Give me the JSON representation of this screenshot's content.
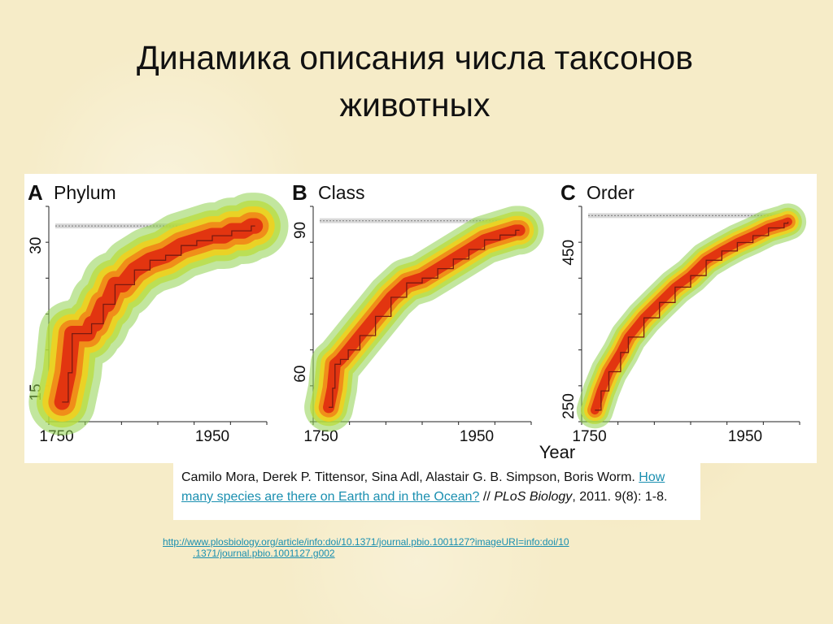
{
  "slide": {
    "title_line1": "Динамика описания числа таксонов",
    "title_line2": "животных"
  },
  "citation": {
    "authors": "Camilo Mora, Derek P. Tittensor, Sina Adl, Alastair G. B. Simpson, Boris Worm. ",
    "link_text": "How many species are there on Earth and in the Ocean?",
    "separator": " // ",
    "journal_part1": "PLoS",
    "journal_part2": "Biology",
    "details": ", 2011. 9(8): 1-8."
  },
  "source": {
    "url_line1": "http://www.plosbiology.org/article/info:doi/10.1371/journal.pbio.1001127?imageURI=info:doi/10",
    "url_line2": ".1371/journal.pbio.1001127.g002"
  },
  "shared_xlabel": "Year",
  "colors": {
    "band_outer": "#8fd14f",
    "band_mid": "#f0d020",
    "band_core": "#e03010",
    "line": "#7a1a10",
    "asymptote": "#888888"
  },
  "chart_data": [
    {
      "type": "line",
      "panel_letter": "A",
      "title": "Phylum",
      "xlim": [
        1740,
        2020
      ],
      "ylim": [
        12,
        34
      ],
      "x_ticks": [
        1750,
        1950
      ],
      "y_ticks": [
        15,
        30
      ],
      "asymptote": 32,
      "band_halfwidth": 2.0,
      "series": [
        {
          "x": [
            1757,
            1765,
            1770,
            1775,
            1790,
            1795,
            1800,
            1810,
            1815,
            1825,
            1835,
            1850,
            1870,
            1890,
            1910,
            1930,
            1950,
            1965,
            1975,
            1990,
            2000,
            2005
          ],
          "y": [
            14,
            17,
            21,
            21,
            21,
            22,
            22,
            24,
            24,
            26,
            26,
            27.5,
            28.5,
            29,
            30,
            30.5,
            31,
            31,
            31.5,
            31.5,
            32,
            32
          ]
        }
      ]
    },
    {
      "type": "line",
      "panel_letter": "B",
      "title": "Class",
      "xlim": [
        1740,
        2020
      ],
      "ylim": [
        50,
        95
      ],
      "x_ticks": [
        1750,
        1950
      ],
      "y_ticks": [
        60,
        90
      ],
      "asymptote": 92,
      "band_halfwidth": 3.0,
      "series": [
        {
          "x": [
            1760,
            1765,
            1768,
            1775,
            1785,
            1800,
            1820,
            1840,
            1860,
            1880,
            1900,
            1920,
            1940,
            1960,
            1980,
            2000,
            2005
          ],
          "y": [
            53,
            57,
            62,
            63,
            65,
            68,
            72,
            76,
            79,
            80,
            82,
            84,
            86,
            88,
            89,
            90,
            90
          ]
        }
      ]
    },
    {
      "type": "line",
      "panel_letter": "C",
      "title": "Order",
      "xlim": [
        1740,
        2020
      ],
      "ylim": [
        230,
        510
      ],
      "x_ticks": [
        1750,
        1950
      ],
      "y_ticks": [
        250,
        450
      ],
      "asymptote": 498,
      "band_halfwidth": 14,
      "series": [
        {
          "x": [
            1757,
            1765,
            1775,
            1790,
            1800,
            1820,
            1840,
            1860,
            1880,
            1900,
            1920,
            1940,
            1960,
            1980,
            2000,
            2005
          ],
          "y": [
            245,
            270,
            295,
            320,
            340,
            365,
            385,
            405,
            420,
            440,
            452,
            463,
            472,
            482,
            488,
            490
          ]
        }
      ]
    }
  ]
}
